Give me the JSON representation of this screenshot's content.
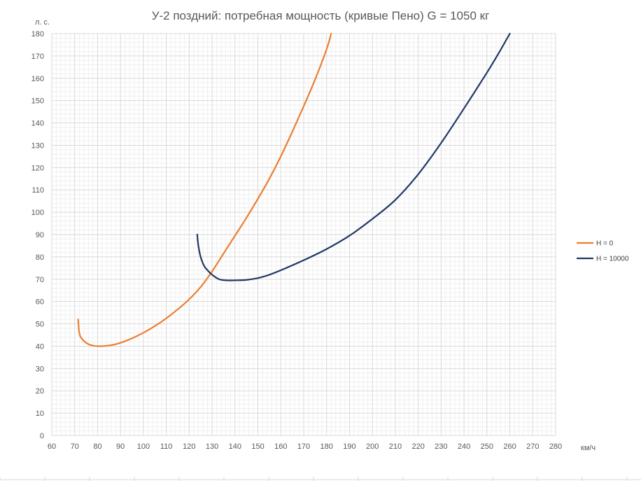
{
  "chart_data": {
    "type": "line",
    "title": "У-2 поздний: потребная мощность (кривые Пено) G = 1050 кг",
    "xlabel": "км/ч",
    "ylabel": "л. с.",
    "xlim": [
      60,
      280
    ],
    "ylim": [
      0,
      180
    ],
    "x_major_step": 10,
    "y_major_step": 10,
    "x_minor_step": 2,
    "y_minor_step": 2,
    "grid": true,
    "legend_position": "right",
    "series": [
      {
        "name": "H = 0",
        "color": "#ED7D31",
        "points": [
          [
            71.5,
            52
          ],
          [
            72,
            46
          ],
          [
            73,
            43.5
          ],
          [
            75,
            41.5
          ],
          [
            77,
            40.5
          ],
          [
            80,
            40
          ],
          [
            85,
            40.3
          ],
          [
            90,
            41.5
          ],
          [
            95,
            43.5
          ],
          [
            100,
            46
          ],
          [
            105,
            49
          ],
          [
            110,
            52.5
          ],
          [
            115,
            56.5
          ],
          [
            120,
            61
          ],
          [
            125,
            66.5
          ],
          [
            130,
            73.5
          ],
          [
            135,
            81.5
          ],
          [
            140,
            89.5
          ],
          [
            145,
            97.5
          ],
          [
            150,
            106
          ],
          [
            155,
            115
          ],
          [
            160,
            125
          ],
          [
            165,
            136
          ],
          [
            170,
            147.5
          ],
          [
            175,
            159.5
          ],
          [
            180,
            173
          ],
          [
            182,
            180
          ]
        ]
      },
      {
        "name": "H = 10000",
        "color": "#203864",
        "points": [
          [
            123.5,
            90
          ],
          [
            124,
            85
          ],
          [
            125,
            80
          ],
          [
            126.5,
            76
          ],
          [
            128,
            74
          ],
          [
            130,
            72
          ],
          [
            133,
            70
          ],
          [
            136,
            69.5
          ],
          [
            140,
            69.5
          ],
          [
            145,
            69.7
          ],
          [
            150,
            70.5
          ],
          [
            155,
            72
          ],
          [
            160,
            74
          ],
          [
            170,
            78.5
          ],
          [
            180,
            83.5
          ],
          [
            190,
            89.5
          ],
          [
            200,
            97
          ],
          [
            210,
            105.5
          ],
          [
            220,
            117
          ],
          [
            230,
            131
          ],
          [
            240,
            146.5
          ],
          [
            250,
            162.5
          ],
          [
            255,
            171
          ],
          [
            260,
            180
          ]
        ]
      }
    ]
  }
}
